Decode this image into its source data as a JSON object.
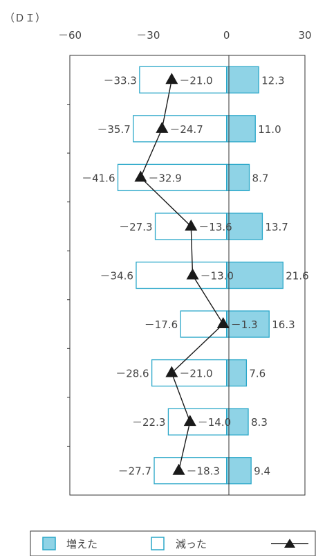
{
  "chart_data": {
    "type": "bar",
    "orientation": "horizontal",
    "unit_label": "（ＤＩ）",
    "x_ticks": [
      "－60",
      "－30",
      "0",
      "30"
    ],
    "xlim": [
      -60,
      30
    ],
    "grid": false,
    "categories": [
      "",
      "",
      "",
      "",
      "",
      "",
      "",
      "",
      ""
    ],
    "series": [
      {
        "name": "増えた",
        "kind": "bar",
        "color": "#8fd3e6",
        "values": [
          12.3,
          11.0,
          8.7,
          13.7,
          21.6,
          16.3,
          7.6,
          8.3,
          9.4
        ],
        "labels": [
          "12.3",
          "11.0",
          "8.7",
          "13.7",
          "21.6",
          "16.3",
          "7.6",
          "8.3",
          "9.4"
        ]
      },
      {
        "name": "減った",
        "kind": "bar",
        "color": "#2aa7c9",
        "values": [
          -33.3,
          -35.7,
          -41.6,
          -27.3,
          -34.6,
          -17.6,
          -28.6,
          -22.3,
          -27.7
        ],
        "labels": [
          "－33.3",
          "－35.7",
          "－41.6",
          "－27.3",
          "－34.6",
          "－17.6",
          "－28.6",
          "－22.3",
          "－27.7"
        ]
      },
      {
        "name": "",
        "kind": "line",
        "color": "#1a1a1a",
        "values": [
          -21.0,
          -24.7,
          -32.9,
          -13.6,
          -13.0,
          -1.3,
          -21.0,
          -14.0,
          -18.3
        ],
        "labels": [
          "－21.0",
          "－24.7",
          "－32.9",
          "－13.6",
          "－13.0",
          "－1.3",
          "－21.0",
          "－14.0",
          "－18.3"
        ]
      }
    ],
    "legend": {
      "position": "bottom",
      "items": [
        "増えた",
        "減った",
        ""
      ]
    }
  }
}
